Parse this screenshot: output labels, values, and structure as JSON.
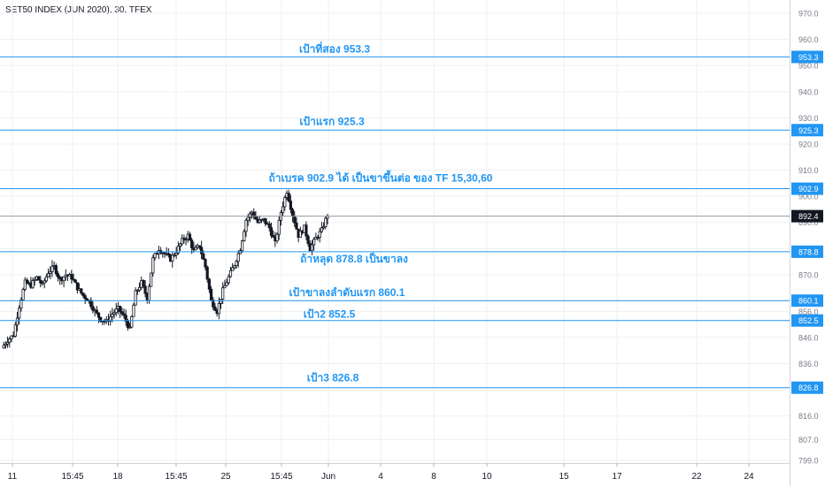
{
  "header": {
    "symbol_title": "SET50 INDEX (JUN 2020), 30, TFEX"
  },
  "colors": {
    "line": "#2196f3",
    "annotation": "#2196f3",
    "candle": "#131722",
    "grid": "#eef0f3",
    "axis_text": "#787b86",
    "price_badge_bg": "#2196f3",
    "last_price_bg": "#131722",
    "last_price_line": "#9598a1"
  },
  "chart_data": {
    "type": "candlestick",
    "title": "SET50 INDEX (JUN 2020), 30, TFEX",
    "ylim": [
      798,
      975
    ],
    "y_ticks": [
      "970.0",
      "960.0",
      "950.0",
      "940.0",
      "930.0",
      "920.0",
      "910.0",
      "900.0",
      "890.0",
      "880.0",
      "870.0",
      "860.0",
      "856.0",
      "846.0",
      "836.0",
      "826.0",
      "816.0",
      "807.0",
      "799.0"
    ],
    "y_tick_values": [
      970,
      960,
      950,
      940,
      930,
      920,
      910,
      900,
      890,
      880,
      870,
      860,
      856,
      846,
      836,
      826,
      816,
      807,
      799
    ],
    "x_ticks": [
      "11",
      "15:45",
      "18",
      "15:45",
      "25",
      "15:45",
      "Jun",
      "4",
      "8",
      "10",
      "15",
      "17",
      "22",
      "24"
    ],
    "horizontal_levels": [
      {
        "price": 953.3,
        "label": "953.3",
        "annotation": "เป้าที่สอง 953.3"
      },
      {
        "price": 925.3,
        "label": "925.3",
        "annotation": "เป้าแรก 925.3"
      },
      {
        "price": 902.9,
        "label": "902.9",
        "annotation": "ถ้าเบรค 902.9 ได้ เป็นขาขึ้นต่อ ของ TF 15,30,60"
      },
      {
        "price": 878.8,
        "label": "878.8",
        "annotation": "ถ้าหลุด 878.8 เป็นขาลง"
      },
      {
        "price": 860.1,
        "label": "860.1",
        "annotation": "เป้าขาลงลำดับแรก 860.1"
      },
      {
        "price": 852.5,
        "label": "852.5",
        "annotation": "เป้า2  852.5"
      },
      {
        "price": 826.8,
        "label": "826.8",
        "annotation": "เป้า3  826.8"
      }
    ],
    "last_price": {
      "price": 892.4,
      "label": "892.4"
    },
    "price_path": [
      [
        0,
        842
      ],
      [
        2,
        845
      ],
      [
        4,
        847
      ],
      [
        6,
        858
      ],
      [
        8,
        867
      ],
      [
        10,
        866
      ],
      [
        12,
        869
      ],
      [
        14,
        866
      ],
      [
        16,
        871
      ],
      [
        18,
        873
      ],
      [
        20,
        868
      ],
      [
        22,
        870
      ],
      [
        24,
        869
      ],
      [
        26,
        865
      ],
      [
        28,
        862
      ],
      [
        30,
        860
      ],
      [
        32,
        856
      ],
      [
        34,
        853
      ],
      [
        36,
        852
      ],
      [
        38,
        855
      ],
      [
        40,
        857
      ],
      [
        42,
        854
      ],
      [
        44,
        849
      ],
      [
        46,
        863
      ],
      [
        48,
        867
      ],
      [
        50,
        861
      ],
      [
        52,
        876
      ],
      [
        54,
        880
      ],
      [
        56,
        878
      ],
      [
        58,
        876
      ],
      [
        60,
        879
      ],
      [
        62,
        883
      ],
      [
        64,
        885
      ],
      [
        66,
        879
      ],
      [
        68,
        881
      ],
      [
        70,
        873
      ],
      [
        72,
        860
      ],
      [
        74,
        856
      ],
      [
        76,
        864
      ],
      [
        78,
        869
      ],
      [
        80,
        874
      ],
      [
        82,
        880
      ],
      [
        84,
        891
      ],
      [
        86,
        894
      ],
      [
        88,
        890
      ],
      [
        90,
        891
      ],
      [
        92,
        888
      ],
      [
        94,
        882
      ],
      [
        96,
        894
      ],
      [
        98,
        902
      ],
      [
        100,
        893
      ],
      [
        102,
        885
      ],
      [
        104,
        888
      ],
      [
        106,
        880
      ],
      [
        108,
        884
      ],
      [
        110,
        887
      ],
      [
        112,
        893
      ]
    ]
  }
}
